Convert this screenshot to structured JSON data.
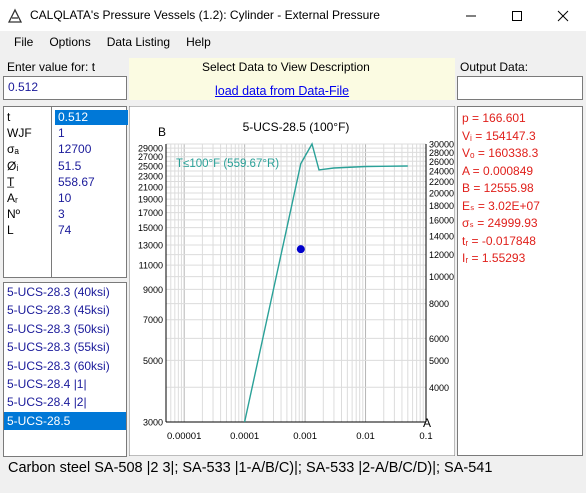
{
  "window": {
    "title": "CALQLATA's  Pressure Vessels (1.2):  Cylinder - External Pressure"
  },
  "menu": [
    "File",
    "Options",
    "Data Listing",
    "Help"
  ],
  "input_section": {
    "prompt": "Enter value for:  t",
    "value": "0.512"
  },
  "center_section": {
    "heading": "Select Data to View Description",
    "load_link": "load data from Data-File"
  },
  "output_section": {
    "label": "Output Data:",
    "value": ""
  },
  "variables": [
    {
      "name": "t",
      "value": "0.512",
      "selected": true
    },
    {
      "name": "WJF",
      "value": "1"
    },
    {
      "name": "σₐ",
      "value": "12700"
    },
    {
      "name": "Øᵢ",
      "value": "51.5"
    },
    {
      "name": "T̲",
      "value": "558.67"
    },
    {
      "name": "Aᵣ",
      "value": "10"
    },
    {
      "name": "Nº",
      "value": "3"
    },
    {
      "name": "L",
      "value": "74"
    }
  ],
  "materials": [
    {
      "label": "5-UCS-28.3 (40ksi)"
    },
    {
      "label": "5-UCS-28.3 (45ksi)"
    },
    {
      "label": "5-UCS-28.3 (50ksi)"
    },
    {
      "label": "5-UCS-28.3 (55ksi)"
    },
    {
      "label": "5-UCS-28.3 (60ksi)"
    },
    {
      "label": "5-UCS-28.4 |1|"
    },
    {
      "label": "5-UCS-28.4 |2|"
    },
    {
      "label": "5-UCS-28.5",
      "selected": true
    }
  ],
  "outputs": [
    "p = 166.601",
    "Vᵢ = 154147.3",
    "Vₒ = 160338.3",
    "A = 0.000849",
    "B = 12555.98",
    "Eₛ = 3.02E+07",
    "σₛ = 24999.93",
    "tᵣ = -0.017848",
    "Iᵣ = 1.55293"
  ],
  "status_text": "Carbon steel SA-508 |2 3|; SA-533 |1-A/B/C)|; SA-533 |2-A/B/C/D)|; SA-541",
  "chart_data": {
    "type": "line",
    "title": "5-UCS-28.5 (100°F)",
    "xlabel": "A",
    "ylabel": "B",
    "x_scale": "log",
    "y_scale": "log",
    "xlim": [
      5e-06,
      0.1
    ],
    "ylim": [
      3000,
      30000
    ],
    "x_tick_labels": [
      "0.00001",
      "0.0001",
      "0.001",
      "0.01",
      "0.1"
    ],
    "x_tick_values": [
      1e-05,
      0.0001,
      0.001,
      0.01,
      0.1
    ],
    "y_left_ticks": [
      3000,
      5000,
      7000,
      9000,
      11000,
      13000,
      15000,
      17000,
      19000,
      21000,
      23000,
      25000,
      27000,
      29000
    ],
    "y_right_ticks": [
      4000,
      5000,
      6000,
      8000,
      10000,
      12000,
      14000,
      16000,
      18000,
      20000,
      22000,
      24000,
      26000,
      28000,
      30000
    ],
    "grid": true,
    "series": [
      {
        "name": "T≤100°F (559.67°R)",
        "color": "#2aa198",
        "x": [
          0.0001,
          0.00023,
          0.0005,
          0.00085,
          0.0013,
          0.0017,
          0.003,
          0.01,
          0.05
        ],
        "y": [
          3000,
          6900,
          15000,
          25500,
          39000,
          24200,
          24600,
          24900,
          25000
        ]
      }
    ],
    "marker": {
      "x": 0.000849,
      "y": 12556,
      "color": "#0000cc"
    }
  }
}
